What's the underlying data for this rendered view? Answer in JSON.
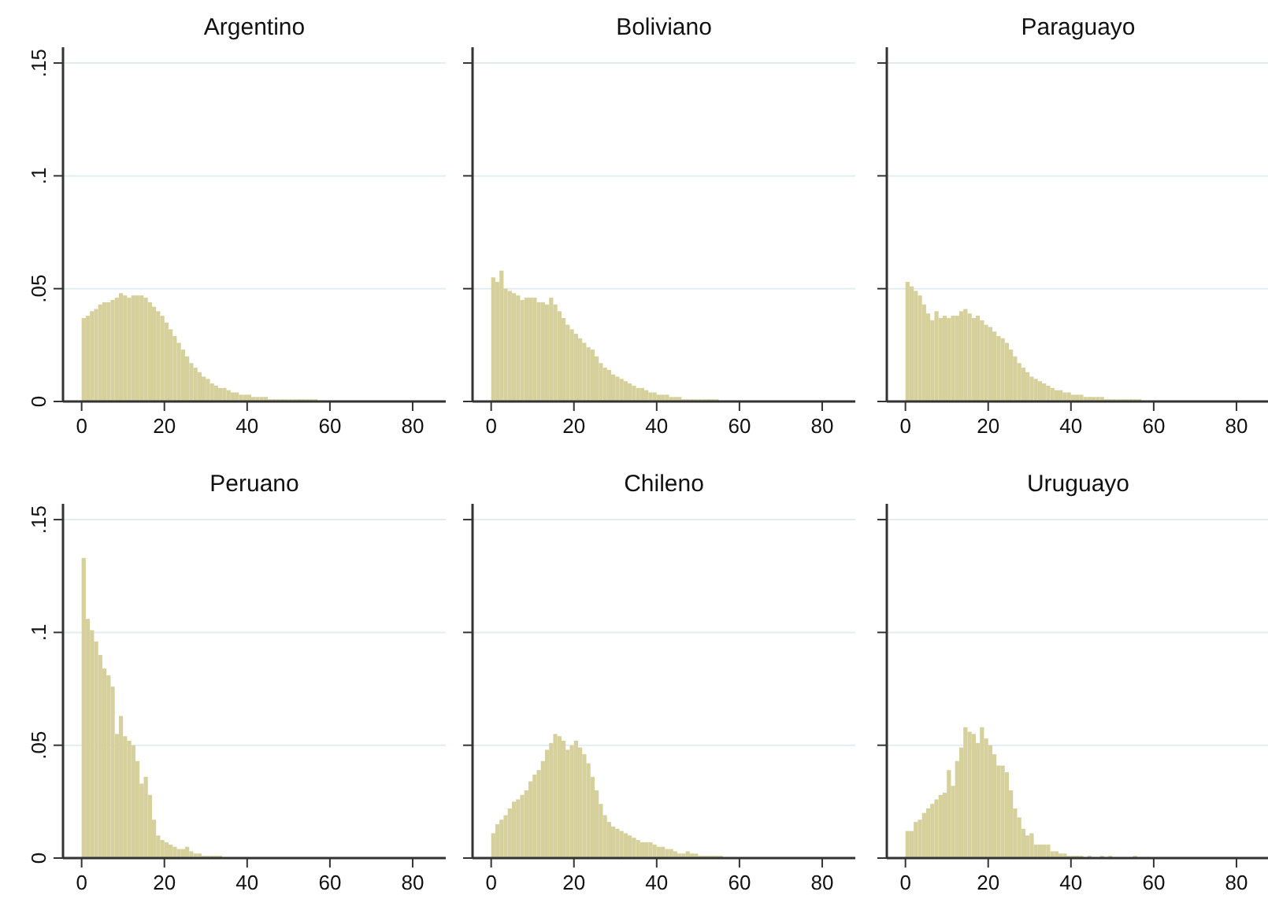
{
  "chart_data": [
    {
      "type": "histogram",
      "title": "Argentino",
      "bins": [
        0,
        1,
        2,
        3,
        4,
        5,
        6,
        7,
        8,
        9,
        10,
        11,
        12,
        13,
        14,
        15,
        16,
        17,
        18,
        19,
        20,
        21,
        22,
        23,
        24,
        25,
        26,
        27,
        28,
        29,
        30,
        31,
        32,
        33,
        34,
        35,
        36,
        37,
        38,
        39,
        40,
        41,
        42,
        43,
        44,
        45,
        46,
        47,
        48,
        49,
        50,
        51,
        52,
        53,
        54,
        55,
        56,
        57,
        58,
        59,
        60
      ],
      "values": [
        0.037,
        0.038,
        0.04,
        0.041,
        0.043,
        0.044,
        0.044,
        0.045,
        0.046,
        0.048,
        0.047,
        0.046,
        0.047,
        0.047,
        0.047,
        0.046,
        0.044,
        0.042,
        0.04,
        0.038,
        0.035,
        0.032,
        0.029,
        0.026,
        0.023,
        0.02,
        0.017,
        0.015,
        0.013,
        0.011,
        0.01,
        0.008,
        0.007,
        0.006,
        0.006,
        0.005,
        0.004,
        0.004,
        0.003,
        0.003,
        0.003,
        0.002,
        0.002,
        0.002,
        0.002,
        0.001,
        0.001,
        0.001,
        0.001,
        0.001,
        0.001,
        0.001,
        0.001,
        0.001,
        0.001,
        0.001,
        0.001,
        0,
        0,
        0
      ],
      "color": "#d6d09c",
      "xlim": [
        -4.5,
        88
      ],
      "ylim": [
        0,
        0.157
      ],
      "xticks": [
        0,
        20,
        40,
        60,
        80
      ],
      "yticks": [
        0,
        {
          "value": 0.05,
          "label": ".05"
        },
        {
          "value": 0.1,
          "label": ".1"
        },
        {
          "value": 0.15,
          "label": ".15"
        }
      ],
      "grid": "y"
    },
    {
      "type": "histogram",
      "title": "Boliviano",
      "bins": [
        0,
        1,
        2,
        3,
        4,
        5,
        6,
        7,
        8,
        9,
        10,
        11,
        12,
        13,
        14,
        15,
        16,
        17,
        18,
        19,
        20,
        21,
        22,
        23,
        24,
        25,
        26,
        27,
        28,
        29,
        30,
        31,
        32,
        33,
        34,
        35,
        36,
        37,
        38,
        39,
        40,
        41,
        42,
        43,
        44,
        45,
        46,
        47,
        48,
        49,
        50,
        51,
        52,
        53,
        54,
        55,
        56,
        57,
        58,
        59,
        60
      ],
      "values": [
        0.055,
        0.053,
        0.058,
        0.05,
        0.049,
        0.048,
        0.047,
        0.045,
        0.046,
        0.046,
        0.046,
        0.044,
        0.044,
        0.043,
        0.046,
        0.043,
        0.04,
        0.037,
        0.034,
        0.032,
        0.03,
        0.028,
        0.026,
        0.024,
        0.023,
        0.02,
        0.017,
        0.015,
        0.014,
        0.012,
        0.011,
        0.01,
        0.009,
        0.008,
        0.007,
        0.006,
        0.006,
        0.005,
        0.004,
        0.004,
        0.003,
        0.003,
        0.003,
        0.002,
        0.002,
        0.002,
        0.001,
        0.001,
        0.001,
        0.001,
        0.001,
        0.001,
        0.001,
        0.001,
        0.001,
        0,
        0,
        0,
        0,
        0
      ],
      "color": "#d6d09c",
      "xlim": [
        -4.5,
        88
      ],
      "ylim": [
        0,
        0.157
      ],
      "xticks": [
        0,
        20,
        40,
        60,
        80
      ],
      "yticks": [
        {
          "value": 0,
          "label": null
        },
        {
          "value": 0.05,
          "label": null
        },
        {
          "value": 0.1,
          "label": null
        },
        {
          "value": 0.15,
          "label": null
        }
      ],
      "grid": "y",
      "tick_labels": "x"
    },
    {
      "type": "histogram",
      "title": "Paraguayo",
      "bins": [
        0,
        1,
        2,
        3,
        4,
        5,
        6,
        7,
        8,
        9,
        10,
        11,
        12,
        13,
        14,
        15,
        16,
        17,
        18,
        19,
        20,
        21,
        22,
        23,
        24,
        25,
        26,
        27,
        28,
        29,
        30,
        31,
        32,
        33,
        34,
        35,
        36,
        37,
        38,
        39,
        40,
        41,
        42,
        43,
        44,
        45,
        46,
        47,
        48,
        49,
        50,
        51,
        52,
        53,
        54,
        55,
        56,
        57,
        58,
        59,
        60
      ],
      "values": [
        0.053,
        0.051,
        0.049,
        0.047,
        0.043,
        0.039,
        0.036,
        0.04,
        0.037,
        0.038,
        0.037,
        0.038,
        0.038,
        0.04,
        0.041,
        0.039,
        0.037,
        0.038,
        0.036,
        0.034,
        0.033,
        0.031,
        0.029,
        0.028,
        0.026,
        0.023,
        0.02,
        0.017,
        0.015,
        0.013,
        0.011,
        0.01,
        0.009,
        0.008,
        0.007,
        0.006,
        0.005,
        0.005,
        0.004,
        0.004,
        0.003,
        0.003,
        0.003,
        0.002,
        0.002,
        0.002,
        0.002,
        0.002,
        0.001,
        0.001,
        0.001,
        0.001,
        0.001,
        0.001,
        0.001,
        0.001,
        0.001,
        0,
        0,
        0
      ],
      "color": "#d6d09c",
      "xlim": [
        -4.5,
        88
      ],
      "ylim": [
        0,
        0.157
      ],
      "xticks": [
        0,
        20,
        40,
        60,
        80
      ],
      "yticks": [
        {
          "value": 0,
          "label": null
        },
        {
          "value": 0.05,
          "label": null
        },
        {
          "value": 0.1,
          "label": null
        },
        {
          "value": 0.15,
          "label": null
        }
      ],
      "grid": "y",
      "tick_labels": "x"
    },
    {
      "type": "histogram",
      "title": "Peruano",
      "bins": [
        0,
        1,
        2,
        3,
        4,
        5,
        6,
        7,
        8,
        9,
        10,
        11,
        12,
        13,
        14,
        15,
        16,
        17,
        18,
        19,
        20,
        21,
        22,
        23,
        24,
        25,
        26,
        27,
        28,
        29,
        30,
        31,
        32,
        33,
        34,
        35,
        36,
        37,
        38,
        39,
        40,
        41,
        42,
        43,
        44,
        45,
        46,
        47,
        48,
        49,
        50,
        51,
        52,
        53,
        54,
        55,
        56,
        57,
        58,
        59,
        60
      ],
      "values": [
        0.133,
        0.106,
        0.101,
        0.096,
        0.09,
        0.084,
        0.081,
        0.076,
        0.055,
        0.063,
        0.054,
        0.052,
        0.05,
        0.043,
        0.033,
        0.036,
        0.028,
        0.017,
        0.01,
        0.008,
        0.007,
        0.006,
        0.005,
        0.004,
        0.004,
        0.005,
        0.003,
        0.002,
        0.002,
        0.001,
        0.001,
        0.001,
        0.001,
        0.001,
        0,
        0,
        0,
        0,
        0,
        0,
        0,
        0,
        0,
        0,
        0,
        0,
        0,
        0,
        0,
        0,
        0,
        0,
        0,
        0,
        0,
        0,
        0,
        0,
        0,
        0
      ],
      "color": "#d6d09c",
      "xlim": [
        -4.5,
        88
      ],
      "ylim": [
        0,
        0.157
      ],
      "xticks": [
        0,
        20,
        40,
        60,
        80
      ],
      "yticks": [
        0,
        {
          "value": 0.05,
          "label": ".05"
        },
        {
          "value": 0.1,
          "label": ".1"
        },
        {
          "value": 0.15,
          "label": ".15"
        }
      ],
      "grid": "y"
    },
    {
      "type": "histogram",
      "title": "Chileno",
      "bins": [
        0,
        1,
        2,
        3,
        4,
        5,
        6,
        7,
        8,
        9,
        10,
        11,
        12,
        13,
        14,
        15,
        16,
        17,
        18,
        19,
        20,
        21,
        22,
        23,
        24,
        25,
        26,
        27,
        28,
        29,
        30,
        31,
        32,
        33,
        34,
        35,
        36,
        37,
        38,
        39,
        40,
        41,
        42,
        43,
        44,
        45,
        46,
        47,
        48,
        49,
        50,
        51,
        52,
        53,
        54,
        55,
        56,
        57,
        58,
        59,
        60
      ],
      "values": [
        0.011,
        0.015,
        0.017,
        0.019,
        0.022,
        0.025,
        0.026,
        0.028,
        0.03,
        0.034,
        0.037,
        0.039,
        0.043,
        0.048,
        0.051,
        0.055,
        0.054,
        0.052,
        0.048,
        0.05,
        0.052,
        0.049,
        0.046,
        0.042,
        0.036,
        0.03,
        0.024,
        0.019,
        0.016,
        0.014,
        0.013,
        0.012,
        0.011,
        0.01,
        0.009,
        0.008,
        0.007,
        0.007,
        0.007,
        0.006,
        0.005,
        0.005,
        0.004,
        0.004,
        0.003,
        0.002,
        0.002,
        0.003,
        0.002,
        0.002,
        0.001,
        0.001,
        0.001,
        0.001,
        0.001,
        0.001,
        0,
        0,
        0,
        0
      ],
      "color": "#d6d09c",
      "xlim": [
        -4.5,
        88
      ],
      "ylim": [
        0,
        0.157
      ],
      "xticks": [
        0,
        20,
        40,
        60,
        80
      ],
      "yticks": [
        {
          "value": 0,
          "label": null
        },
        {
          "value": 0.05,
          "label": null
        },
        {
          "value": 0.1,
          "label": null
        },
        {
          "value": 0.15,
          "label": null
        }
      ],
      "grid": "y",
      "tick_labels": "x"
    },
    {
      "type": "histogram",
      "title": "Uruguayo",
      "bins": [
        0,
        1,
        2,
        3,
        4,
        5,
        6,
        7,
        8,
        9,
        10,
        11,
        12,
        13,
        14,
        15,
        16,
        17,
        18,
        19,
        20,
        21,
        22,
        23,
        24,
        25,
        26,
        27,
        28,
        29,
        30,
        31,
        32,
        33,
        34,
        35,
        36,
        37,
        38,
        39,
        40,
        41,
        42,
        43,
        44,
        45,
        46,
        47,
        48,
        49,
        50,
        51,
        52,
        53,
        54,
        55,
        56,
        57,
        58,
        59,
        60
      ],
      "values": [
        0.012,
        0.012,
        0.016,
        0.017,
        0.02,
        0.022,
        0.024,
        0.026,
        0.028,
        0.029,
        0.039,
        0.032,
        0.043,
        0.049,
        0.058,
        0.056,
        0.055,
        0.051,
        0.058,
        0.053,
        0.05,
        0.046,
        0.041,
        0.041,
        0.038,
        0.03,
        0.022,
        0.018,
        0.013,
        0.01,
        0.011,
        0.006,
        0.006,
        0.006,
        0.006,
        0.003,
        0.003,
        0.002,
        0.002,
        0.001,
        0.001,
        0.001,
        0.001,
        0,
        0.001,
        0,
        0,
        0.001,
        0,
        0.001,
        0,
        0,
        0,
        0,
        0,
        0.001,
        0,
        0,
        0,
        0
      ],
      "color": "#d6d09c",
      "xlim": [
        -4.5,
        88
      ],
      "ylim": [
        0,
        0.157
      ],
      "xticks": [
        0,
        20,
        40,
        60,
        80
      ],
      "yticks": [
        {
          "value": 0,
          "label": null
        },
        {
          "value": 0.05,
          "label": null
        },
        {
          "value": 0.1,
          "label": null
        },
        {
          "value": 0.15,
          "label": null
        }
      ],
      "grid": "y",
      "tick_labels": "x"
    }
  ]
}
